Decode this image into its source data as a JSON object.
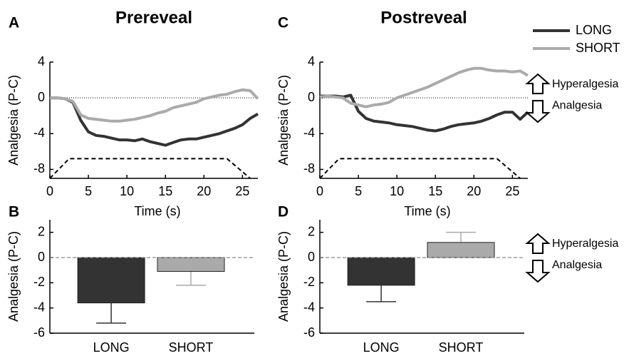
{
  "chart_data": [
    {
      "type": "line",
      "panel_label": "A",
      "title": "Prereveal",
      "xlabel": "Time (s)",
      "ylabel": "Analgesia (P-C)",
      "x": [
        0,
        1,
        2,
        3,
        4,
        5,
        6,
        7,
        8,
        9,
        10,
        11,
        12,
        13,
        14,
        15,
        16,
        17,
        18,
        19,
        20,
        21,
        22,
        23,
        24,
        25,
        26,
        27
      ],
      "xlim": [
        0,
        27
      ],
      "xticks": [
        0,
        5,
        10,
        15,
        20,
        25
      ],
      "ylim": [
        -9,
        4
      ],
      "yticks": [
        -8,
        -4,
        0,
        4
      ],
      "zero_line": true,
      "series": [
        {
          "name": "LONG",
          "color": "#333333",
          "values": [
            0,
            0,
            -0.1,
            -0.5,
            -2.5,
            -3.8,
            -4.2,
            -4.3,
            -4.5,
            -4.7,
            -4.7,
            -4.8,
            -4.6,
            -4.9,
            -5.1,
            -5.3,
            -5.0,
            -4.7,
            -4.6,
            -4.6,
            -4.4,
            -4.2,
            -4.0,
            -3.7,
            -3.4,
            -3.0,
            -2.3,
            -1.8
          ]
        },
        {
          "name": "SHORT",
          "color": "#aaaaaa",
          "values": [
            0,
            0,
            -0.1,
            -0.4,
            -1.9,
            -2.3,
            -2.4,
            -2.5,
            -2.6,
            -2.6,
            -2.5,
            -2.4,
            -2.2,
            -2.0,
            -1.7,
            -1.5,
            -1.1,
            -0.9,
            -0.7,
            -0.5,
            -0.1,
            0.1,
            0.3,
            0.4,
            0.7,
            0.9,
            0.8,
            -0.1
          ]
        },
        {
          "color": "#000000",
          "dash": true,
          "x": [
            0,
            2.5,
            23,
            26
          ],
          "values": [
            -9,
            -6.8,
            -6.8,
            -9
          ]
        }
      ]
    },
    {
      "type": "bar",
      "panel_label": "B",
      "ylabel": "Analgesia (P-C)",
      "categories": [
        "LONG",
        "SHORT"
      ],
      "values": [
        -3.6,
        -1.1
      ],
      "errors": [
        1.6,
        1.1
      ],
      "colors": [
        "#333333",
        "#aaaaaa"
      ],
      "ylim": [
        -6,
        3
      ],
      "yticks": [
        -6,
        -4,
        -2,
        0,
        2
      ],
      "zero_line": true
    },
    {
      "type": "line",
      "panel_label": "C",
      "title": "Postreveal",
      "xlabel": "Time (s)",
      "ylabel": "Analgesia (P-C)",
      "x": [
        0,
        1,
        2,
        3,
        4,
        5,
        6,
        7,
        8,
        9,
        10,
        11,
        12,
        13,
        14,
        15,
        16,
        17,
        18,
        19,
        20,
        21,
        22,
        23,
        24,
        25,
        26,
        27
      ],
      "xlim": [
        0,
        27
      ],
      "xticks": [
        0,
        5,
        10,
        15,
        20,
        25
      ],
      "ylim": [
        -9,
        4
      ],
      "yticks": [
        -8,
        -4,
        0,
        4
      ],
      "zero_line": true,
      "legend": "outside-top-right",
      "annotations": [
        "Hyperalgesia",
        "Analgesia"
      ],
      "series": [
        {
          "name": "LONG",
          "color": "#333333",
          "values": [
            0.2,
            0.2,
            0.2,
            0.1,
            0.3,
            -1.5,
            -2.3,
            -2.6,
            -2.7,
            -2.8,
            -3.0,
            -3.1,
            -3.2,
            -3.4,
            -3.6,
            -3.7,
            -3.5,
            -3.2,
            -3.0,
            -2.9,
            -2.8,
            -2.6,
            -2.3,
            -1.9,
            -1.6,
            -1.6,
            -2.4,
            -1.6
          ]
        },
        {
          "name": "SHORT",
          "color": "#aaaaaa",
          "values": [
            0.1,
            0.2,
            0.1,
            0,
            -0.6,
            -0.8,
            -1.0,
            -0.8,
            -0.7,
            -0.5,
            0,
            0.3,
            0.6,
            0.9,
            1.2,
            1.6,
            2.0,
            2.4,
            2.8,
            3.1,
            3.3,
            3.3,
            3.1,
            3.0,
            3.0,
            2.9,
            3.0,
            2.5
          ]
        },
        {
          "color": "#000000",
          "dash": true,
          "x": [
            0,
            2.5,
            23,
            26
          ],
          "values": [
            -9,
            -6.8,
            -6.8,
            -9
          ]
        }
      ]
    },
    {
      "type": "bar",
      "panel_label": "D",
      "ylabel": "Analgesia (P-C)",
      "categories": [
        "LONG",
        "SHORT"
      ],
      "values": [
        -2.2,
        1.2
      ],
      "errors": [
        1.3,
        0.8
      ],
      "colors": [
        "#333333",
        "#aaaaaa"
      ],
      "ylim": [
        -6,
        3
      ],
      "yticks": [
        -6,
        -4,
        -2,
        0,
        2
      ],
      "zero_line": true,
      "annotations": [
        "Hyperalgesia",
        "Analgesia"
      ]
    }
  ]
}
